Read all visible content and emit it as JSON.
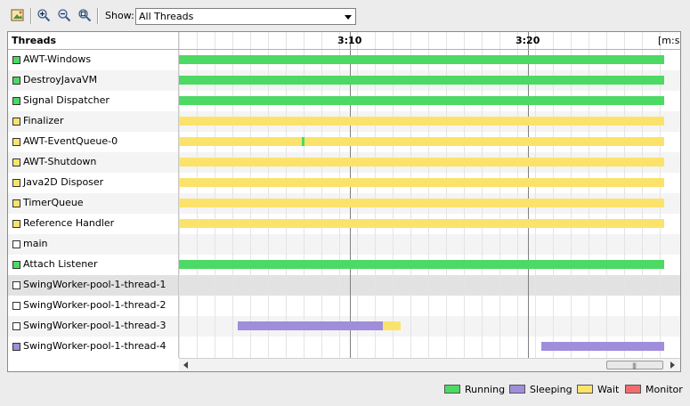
{
  "toolbar": {
    "buttons": [
      {
        "name": "export-image-icon"
      },
      {
        "name": "zoom-in-icon"
      },
      {
        "name": "zoom-out-icon"
      },
      {
        "name": "zoom-fit-icon"
      }
    ],
    "show_label": "Show:",
    "show_value": "All Threads"
  },
  "timeline": {
    "column_header": "Threads",
    "ticks": [
      {
        "label": "3:10"
      },
      {
        "label": "3:20"
      }
    ],
    "unit": "[m:s]"
  },
  "colors": {
    "running": "#4cd964",
    "sleeping": "#a08ddb",
    "wait": "#fbe36b",
    "monitor": "#ef6d6d",
    "none": "#ffffff"
  },
  "threads": [
    {
      "name": "AWT-Windows",
      "state": "running",
      "segments": [
        {
          "start": 0.0,
          "end": 1.0,
          "state": "running"
        }
      ]
    },
    {
      "name": "DestroyJavaVM",
      "state": "running",
      "segments": [
        {
          "start": 0.0,
          "end": 1.0,
          "state": "running"
        }
      ]
    },
    {
      "name": "Signal Dispatcher",
      "state": "running",
      "segments": [
        {
          "start": 0.0,
          "end": 1.0,
          "state": "running"
        }
      ]
    },
    {
      "name": "Finalizer",
      "state": "wait",
      "segments": [
        {
          "start": 0.0,
          "end": 1.0,
          "state": "wait"
        }
      ]
    },
    {
      "name": "AWT-EventQueue-0",
      "state": "wait",
      "segments": [
        {
          "start": 0.0,
          "end": 0.254,
          "state": "wait"
        },
        {
          "start": 0.254,
          "end": 0.259,
          "state": "running"
        },
        {
          "start": 0.259,
          "end": 1.0,
          "state": "wait"
        }
      ]
    },
    {
      "name": "AWT-Shutdown",
      "state": "wait",
      "segments": [
        {
          "start": 0.0,
          "end": 1.0,
          "state": "wait"
        }
      ]
    },
    {
      "name": "Java2D Disposer",
      "state": "wait",
      "segments": [
        {
          "start": 0.0,
          "end": 1.0,
          "state": "wait"
        }
      ]
    },
    {
      "name": "TimerQueue",
      "state": "wait",
      "segments": [
        {
          "start": 0.0,
          "end": 1.0,
          "state": "wait"
        }
      ]
    },
    {
      "name": "Reference Handler",
      "state": "wait",
      "segments": [
        {
          "start": 0.0,
          "end": 1.0,
          "state": "wait"
        }
      ]
    },
    {
      "name": "main",
      "state": "none",
      "segments": []
    },
    {
      "name": "Attach Listener",
      "state": "running",
      "segments": [
        {
          "start": 0.0,
          "end": 1.0,
          "state": "running"
        }
      ]
    },
    {
      "name": "SwingWorker-pool-1-thread-1",
      "state": "none",
      "segments": []
    },
    {
      "name": "SwingWorker-pool-1-thread-2",
      "state": "none",
      "segments": []
    },
    {
      "name": "SwingWorker-pool-1-thread-3",
      "state": "none",
      "segments": [
        {
          "start": 0.121,
          "end": 0.42,
          "state": "sleeping"
        },
        {
          "start": 0.42,
          "end": 0.456,
          "state": "wait"
        }
      ]
    },
    {
      "name": "SwingWorker-pool-1-thread-4",
      "state": "sleeping",
      "segments": [
        {
          "start": 0.746,
          "end": 1.0,
          "state": "sleeping"
        }
      ]
    }
  ],
  "legend": [
    {
      "label": "Running",
      "state": "running"
    },
    {
      "label": "Sleeping",
      "state": "sleeping"
    },
    {
      "label": "Wait",
      "state": "wait"
    },
    {
      "label": "Monitor",
      "state": "monitor"
    }
  ]
}
